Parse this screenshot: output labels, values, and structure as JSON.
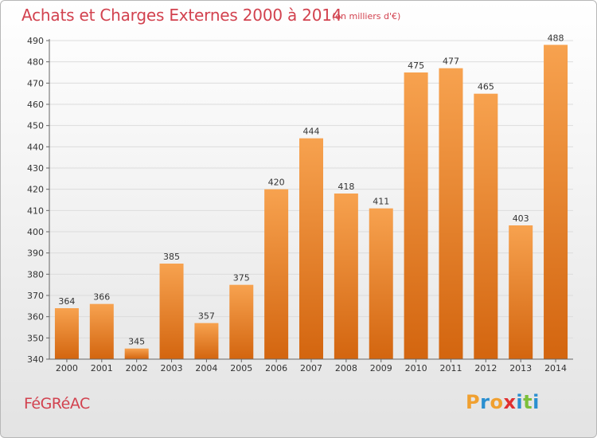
{
  "header": {
    "title": "Achats et Charges Externes 2000 à 2014",
    "subtitle": "(en milliers d'€)"
  },
  "footer": {
    "commune": "FéGRéAC",
    "logo_text": "Proxiti",
    "logo_letters": [
      {
        "ch": "P",
        "color": "#f0a030"
      },
      {
        "ch": "r",
        "color": "#2a8fd0"
      },
      {
        "ch": "o",
        "color": "#f0a030"
      },
      {
        "ch": "x",
        "color": "#e03030"
      },
      {
        "ch": "i",
        "color": "#2a8fd0"
      },
      {
        "ch": "t",
        "color": "#7cbf3a"
      },
      {
        "ch": "i",
        "color": "#2a8fd0"
      }
    ]
  },
  "chart_data": {
    "type": "bar",
    "categories": [
      "2000",
      "2001",
      "2002",
      "2003",
      "2004",
      "2005",
      "2006",
      "2007",
      "2008",
      "2009",
      "2010",
      "2011",
      "2012",
      "2013",
      "2014"
    ],
    "values": [
      364,
      366,
      345,
      385,
      357,
      375,
      420,
      444,
      418,
      411,
      475,
      477,
      465,
      403,
      488
    ],
    "ylim": [
      340,
      490
    ],
    "yticks": [
      340,
      350,
      360,
      370,
      380,
      390,
      400,
      410,
      420,
      430,
      440,
      450,
      460,
      470,
      480,
      490
    ],
    "grid": true,
    "bar_color_top": "#f7a24f",
    "bar_color_bottom": "#d3650f",
    "title": "Achats et Charges Externes 2000 à 2014",
    "xlabel": "",
    "ylabel": ""
  }
}
